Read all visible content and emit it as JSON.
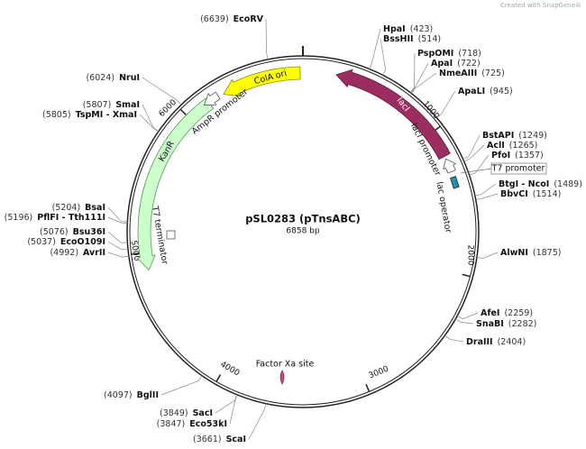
{
  "watermark": "Created with SnapGene®",
  "title": "pSL0283 (pTnsABC)",
  "length": "6858 bp",
  "scale_labels": [
    "1000",
    "2000",
    "3000",
    "4000",
    "5000",
    "6000"
  ],
  "features": [
    {
      "label": "ColA ori"
    },
    {
      "label": "lacI"
    },
    {
      "label": "KanR"
    },
    {
      "label": "AmpR promoter"
    },
    {
      "label": "lacI promoter"
    },
    {
      "label": "lac operator"
    },
    {
      "label": "T7 promoter"
    },
    {
      "label": "T7 terminator"
    },
    {
      "label": "Factor Xa site"
    }
  ],
  "sites": [
    {
      "name": "EcoRV",
      "position": "(6639)"
    },
    {
      "name": "HpaI",
      "position": "(423)"
    },
    {
      "name": "BssHII",
      "position": "(514)"
    },
    {
      "name": "PspOMI",
      "position": "(718)"
    },
    {
      "name": "ApaI",
      "position": "(722)"
    },
    {
      "name": "NmeAIII",
      "position": "(725)"
    },
    {
      "name": "ApaLI",
      "position": "(945)"
    },
    {
      "name": "BstAPI",
      "position": "(1249)"
    },
    {
      "name": "AclI",
      "position": "(1265)"
    },
    {
      "name": "PfoI",
      "position": "(1357)"
    },
    {
      "name": "BtgI - NcoI",
      "position": "(1489)"
    },
    {
      "name": "BbvCI",
      "position": "(1514)"
    },
    {
      "name": "AlwNI",
      "position": "(1875)"
    },
    {
      "name": "AfeI",
      "position": "(2259)"
    },
    {
      "name": "SnaBI",
      "position": "(2282)"
    },
    {
      "name": "DraIII",
      "position": "(2404)"
    },
    {
      "name": "ScaI",
      "position": "(3661)"
    },
    {
      "name": "SacI",
      "position": "(3849)"
    },
    {
      "name": "Eco53kI",
      "position": "(3847)"
    },
    {
      "name": "BglII",
      "position": "(4097)"
    },
    {
      "name": "AvrII",
      "position": "(4992)"
    },
    {
      "name": "EcoO109I",
      "position": "(5037)"
    },
    {
      "name": "Bsu36I",
      "position": "(5076)"
    },
    {
      "name": "PflFI - Tth111I",
      "position": "(5196)"
    },
    {
      "name": "BsaI",
      "position": "(5204)"
    },
    {
      "name": "TspMI - XmaI",
      "position": "(5805)"
    },
    {
      "name": "SmaI",
      "position": "(5807)"
    },
    {
      "name": "NruI",
      "position": "(6024)"
    }
  ]
}
